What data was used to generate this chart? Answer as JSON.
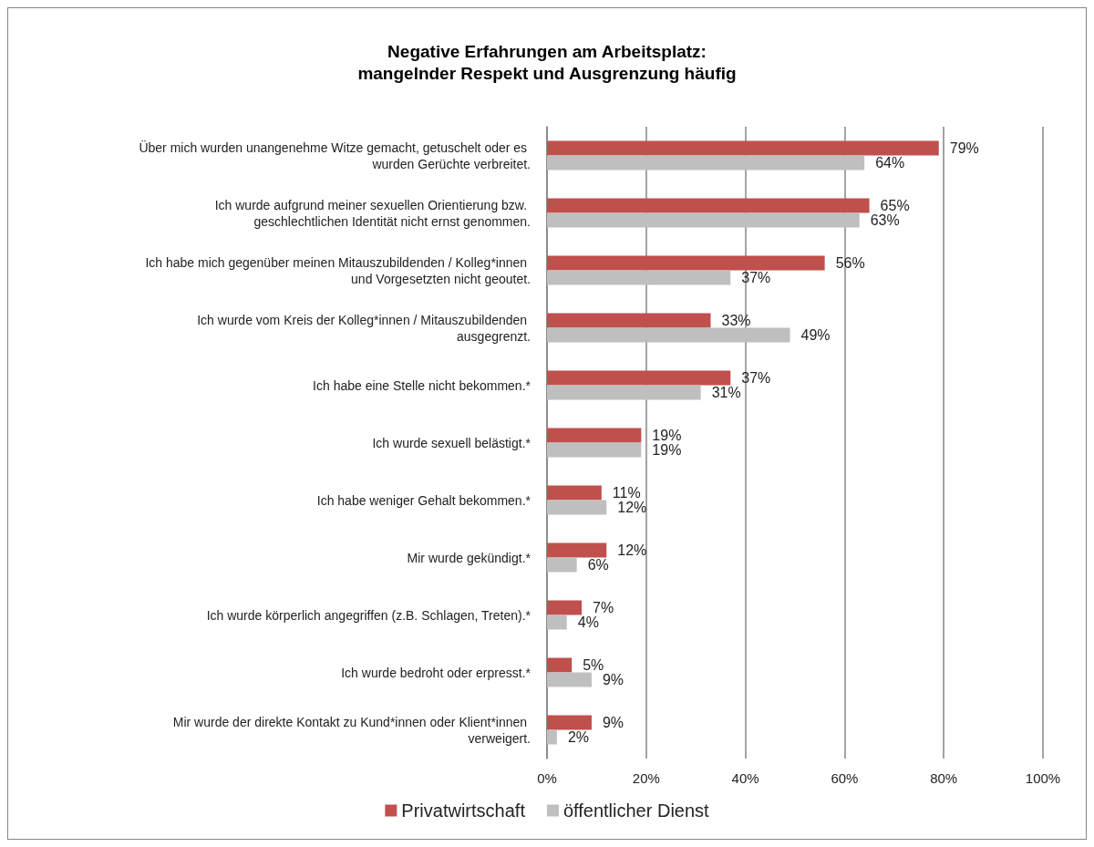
{
  "chart_data": {
    "type": "bar",
    "orientation": "horizontal",
    "title": "Negative Erfahrungen am Arbeitsplatz:\nmangelnder Respekt und Ausgrenzung häufig",
    "categories": [
      "Über mich wurden unangenehme Witze gemacht, getuschelt oder es wurden Gerüchte verbreitet.",
      "Ich wurde aufgrund meiner sexuellen Orientierung bzw. geschlechtlichen Identität nicht ernst genommen.",
      "Ich habe mich gegenüber meinen Mitauszubildenden / Kolleg*innen und Vorgesetzten nicht geoutet.",
      "Ich wurde vom Kreis der Kolleg*innen / Mitauszubildenden ausgegrenzt.",
      "Ich habe eine Stelle nicht bekommen.*",
      "Ich wurde sexuell belästigt.*",
      "Ich habe weniger Gehalt bekommen.*",
      "Mir wurde gekündigt.*",
      "Ich wurde körperlich angegriffen (z.B. Schlagen, Treten).*",
      "Ich wurde bedroht oder erpresst.*",
      "Mir wurde der direkte Kontakt zu Kund*innen oder Klient*innen verweigert."
    ],
    "series": [
      {
        "name": "Privatwirtschaft",
        "color": "#c0504d",
        "values": [
          79,
          65,
          56,
          33,
          37,
          19,
          11,
          12,
          7,
          5,
          9
        ],
        "value_labels": [
          "79%",
          "65%",
          "56%",
          "33%",
          "37%",
          "19%",
          "11%",
          "12%",
          "7%",
          "5%",
          "9%"
        ]
      },
      {
        "name": "öffentlicher Dienst",
        "color": "#bfbfbf",
        "values": [
          64,
          63,
          37,
          49,
          31,
          19,
          12,
          6,
          4,
          9,
          2
        ],
        "value_labels": [
          "64%",
          "63%",
          "37%",
          "49%",
          "31%",
          "19%",
          "12%",
          "6%",
          "4%",
          "9%",
          "2%"
        ]
      }
    ],
    "xlim": [
      0,
      100
    ],
    "xticks": [
      {
        "value": 0,
        "label": "0%"
      },
      {
        "value": 20,
        "label": "20%"
      },
      {
        "value": 40,
        "label": "40%"
      },
      {
        "value": 60,
        "label": "60%"
      },
      {
        "value": 80,
        "label": "80%"
      },
      {
        "value": 100,
        "label": "100%"
      }
    ],
    "grid": "x",
    "legend": "bottom"
  }
}
